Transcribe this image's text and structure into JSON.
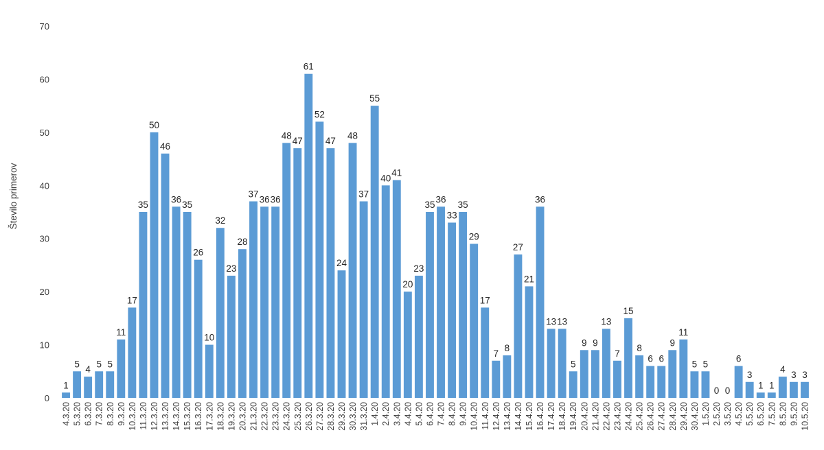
{
  "chart_data": {
    "type": "bar",
    "ylabel": "Število primerov",
    "xlabel": "",
    "ylim": [
      0,
      70
    ],
    "yticks": [
      "0",
      "10",
      "20",
      "30",
      "40",
      "50",
      "60",
      "70"
    ],
    "grid": false,
    "bar_color": "#5b9bd5",
    "categories": [
      "4.3.20",
      "5.3.20",
      "6.3.20",
      "7.3.20",
      "8.3.20",
      "9.3.20",
      "10.3.20",
      "11.3.20",
      "12.3.20",
      "13.3.20",
      "14.3.20",
      "15.3.20",
      "16.3.20",
      "17.3.20",
      "18.3.20",
      "19.3.20",
      "20.3.20",
      "21.3.20",
      "22.3.20",
      "23.3.20",
      "24.3.20",
      "25.3.20",
      "26.3.20",
      "27.3.20",
      "28.3.20",
      "29.3.20",
      "30.3.20",
      "31.3.20",
      "1.4.20",
      "2.4.20",
      "3.4.20",
      "4.4.20",
      "5.4.20",
      "6.4.20",
      "7.4.20",
      "8.4.20",
      "9.4.20",
      "10.4.20",
      "11.4.20",
      "12.4.20",
      "13.4.20",
      "14.4.20",
      "15.4.20",
      "16.4.20",
      "17.4.20",
      "18.4.20",
      "19.4.20",
      "20.4.20",
      "21.4.20",
      "22.4.20",
      "23.4.20",
      "24.4.20",
      "25.4.20",
      "26.4.20",
      "27.4.20",
      "28.4.20",
      "29.4.20",
      "30.4.20",
      "1.5.20",
      "2.5.20",
      "3.5.20",
      "4.5.20",
      "5.5.20",
      "6.5.20",
      "7.5.20",
      "8.5.20",
      "9.5.20",
      "10.5.20"
    ],
    "values": [
      1,
      5,
      4,
      5,
      5,
      11,
      17,
      35,
      50,
      46,
      36,
      35,
      26,
      10,
      32,
      23,
      28,
      37,
      36,
      36,
      48,
      47,
      61,
      52,
      47,
      24,
      48,
      37,
      55,
      40,
      41,
      20,
      23,
      35,
      36,
      33,
      35,
      29,
      17,
      7,
      8,
      27,
      21,
      36,
      13,
      13,
      5,
      9,
      9,
      13,
      7,
      15,
      8,
      6,
      6,
      9,
      11,
      5,
      5,
      0,
      0,
      6,
      3,
      1,
      1,
      4,
      3,
      3
    ]
  }
}
